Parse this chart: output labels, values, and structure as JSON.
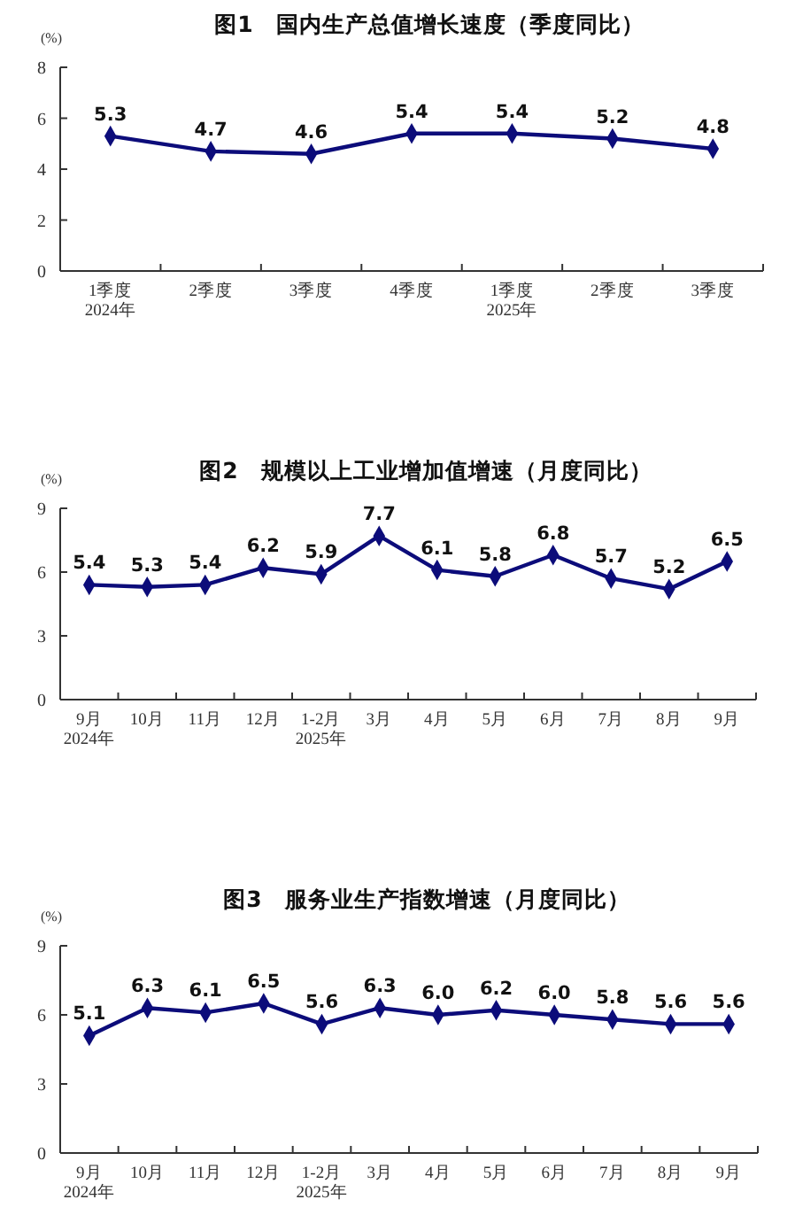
{
  "chart_data": [
    {
      "type": "line",
      "title": "图1　国内生产总值增长速度（季度同比）",
      "ylabel": "(%)",
      "categories": [
        "1季度\n2024年",
        "2季度",
        "3季度",
        "4季度",
        "1季度\n2025年",
        "2季度",
        "3季度"
      ],
      "series": [
        {
          "color": "#0c0c7a",
          "values": [
            5.3,
            4.7,
            4.6,
            5.4,
            5.4,
            5.2,
            4.8
          ]
        }
      ],
      "ylim": [
        0,
        8
      ],
      "yticks": [
        0,
        2,
        4,
        6,
        8
      ],
      "data_labels": true,
      "marker": "diamond",
      "grid": false
    },
    {
      "type": "line",
      "title": "图2　规模以上工业增加值增速（月度同比）",
      "ylabel": "(%)",
      "categories": [
        "9月\n2024年",
        "10月",
        "11月",
        "12月",
        "1-2月\n2025年",
        "3月",
        "4月",
        "5月",
        "6月",
        "7月",
        "8月",
        "9月"
      ],
      "series": [
        {
          "color": "#0c0c7a",
          "values": [
            5.4,
            5.3,
            5.4,
            6.2,
            5.9,
            7.7,
            6.1,
            5.8,
            6.8,
            5.7,
            5.2,
            6.5
          ]
        }
      ],
      "ylim": [
        0,
        9
      ],
      "yticks": [
        0,
        3,
        6,
        9
      ],
      "data_labels": true,
      "marker": "diamond",
      "grid": false
    },
    {
      "type": "line",
      "title": "图3　服务业生产指数增速（月度同比）",
      "ylabel": "(%)",
      "categories": [
        "9月\n2024年",
        "10月",
        "11月",
        "12月",
        "1-2月\n2025年",
        "3月",
        "4月",
        "5月",
        "6月",
        "7月",
        "8月",
        "9月"
      ],
      "series": [
        {
          "color": "#0c0c7a",
          "values": [
            5.1,
            6.3,
            6.1,
            6.5,
            5.6,
            6.3,
            6.0,
            6.2,
            6.0,
            5.8,
            5.6,
            5.6
          ],
          "value_labels": [
            "5.1",
            "6.3",
            "6.1",
            "6.5",
            "5.6",
            "6.3",
            "6.0",
            "6.2",
            "6.0",
            "5.8",
            "5.6",
            "5.6"
          ]
        }
      ],
      "ylim": [
        0,
        9
      ],
      "yticks": [
        0,
        3,
        6,
        9
      ],
      "marker": "diamond",
      "grid": false
    }
  ]
}
